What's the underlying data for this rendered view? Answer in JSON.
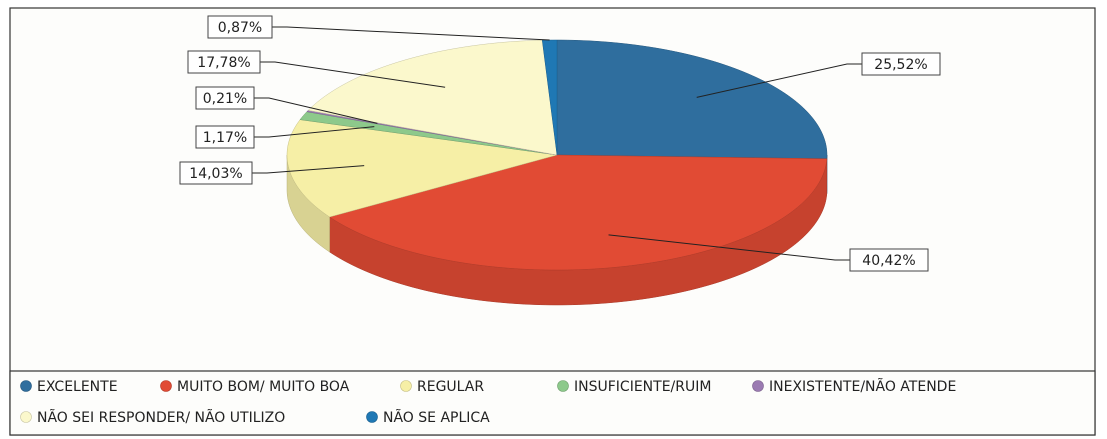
{
  "chart_data": {
    "type": "pie3d",
    "categories": [
      "EXCELENTE",
      "MUITO BOM/ MUITO BOA",
      "REGULAR",
      "INSUFICIENTE/RUIM",
      "INEXISTENTE/NÃO ATENDE",
      "NÃO SEI RESPONDER/ NÃO UTILIZO",
      "NÃO SE APLICA"
    ],
    "values": [
      25.52,
      40.42,
      14.03,
      1.17,
      0.21,
      17.78,
      0.87
    ],
    "value_labels": [
      "25,52%",
      "40,42%",
      "14,03%",
      "1,17%",
      "0,21%",
      "17,78%",
      "0,87%"
    ],
    "colors": [
      "#2f6e9e",
      "#e14b34",
      "#f6efa6",
      "#8dc98b",
      "#9b7bb2",
      "#fbf8cc",
      "#1f78b4"
    ]
  }
}
